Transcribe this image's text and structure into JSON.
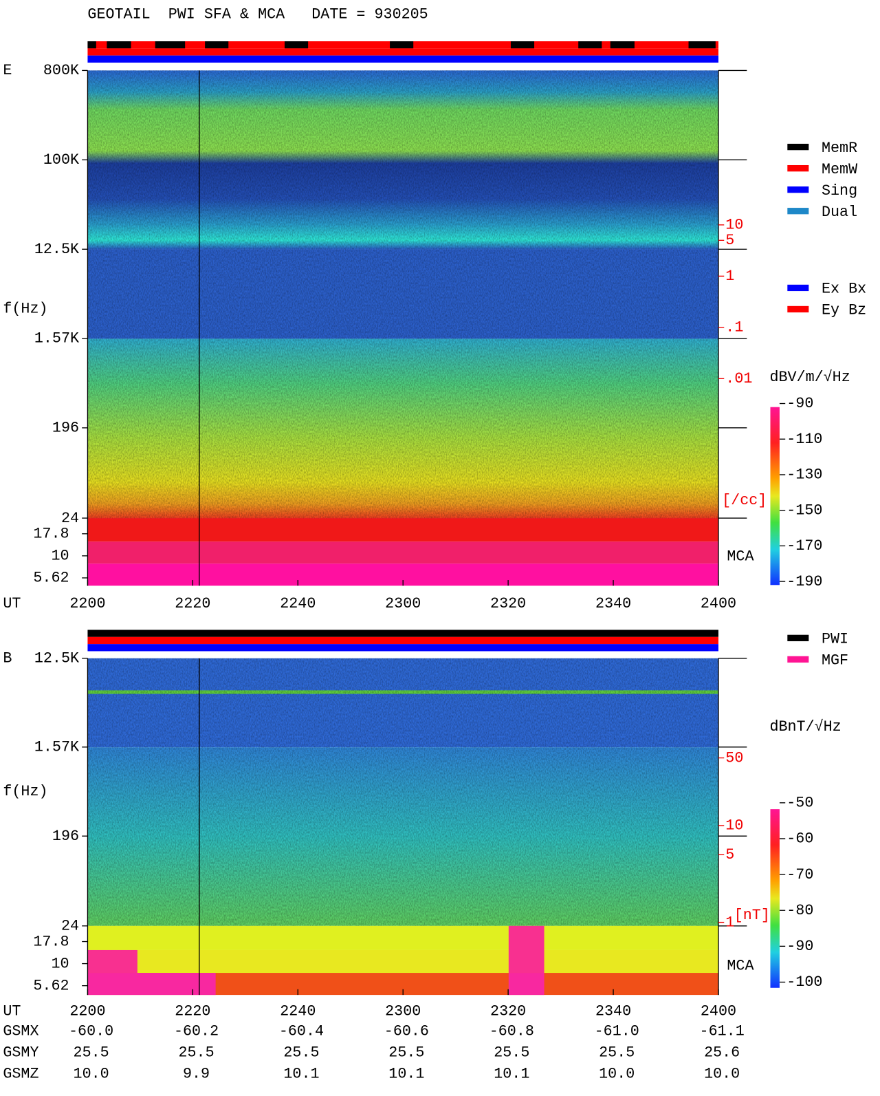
{
  "header": {
    "title": "GEOTAIL  PWI SFA & MCA   DATE = 930205"
  },
  "chart_data": [
    {
      "type": "spectrogram",
      "panel": "E",
      "ylabel": "f(Hz)",
      "xlabel": "UT",
      "log_y": true,
      "ylim": [
        24,
        800000
      ],
      "yticks": [
        {
          "value": 800000,
          "label": "800K"
        },
        {
          "value": 100000,
          "label": "100K"
        },
        {
          "value": 12500,
          "label": "12.5K"
        },
        {
          "value": 1570,
          "label": "1.57K"
        },
        196,
        24
      ],
      "mca_label": "MCA",
      "mca_channels": [
        17.8,
        10,
        5.62
      ],
      "time_labels": [
        "2200",
        "2220",
        "2240",
        "2300",
        "2320",
        "2340",
        "2400"
      ],
      "density_ticks": [
        10,
        5,
        1,
        {
          "value": 0.1,
          "label": ".1"
        },
        {
          "value": 0.01,
          "label": ".01"
        }
      ],
      "density_unit": "[/cc]",
      "colorbar": {
        "label": "dBV/m/√Hz",
        "lim": [
          -190,
          -90
        ],
        "ticks": [
          -90,
          -110,
          -130,
          -150,
          -170,
          -190
        ]
      },
      "legend": [
        {
          "name": "MemR",
          "color": "#000000"
        },
        {
          "name": "MemW",
          "color": "#ff0000"
        },
        {
          "name": "Sing",
          "color": "#0000ff"
        },
        {
          "name": "Dual",
          "color": "#1e88c8"
        }
      ],
      "legend2": [
        {
          "name": "Ex Bx",
          "color": "#0000ff"
        },
        {
          "name": "Ey Bz",
          "color": "#ff0000"
        }
      ]
    },
    {
      "type": "spectrogram",
      "panel": "B",
      "ylabel": "f(Hz)",
      "xlabel": "UT",
      "log_y": true,
      "ylim": [
        24,
        12500
      ],
      "yticks": [
        {
          "value": 12500,
          "label": "12.5K"
        },
        {
          "value": 1570,
          "label": "1.57K"
        },
        196,
        24
      ],
      "mca_label": "MCA",
      "mca_channels": [
        17.8,
        10,
        5.62
      ],
      "time_labels": [
        "2200",
        "2220",
        "2240",
        "2300",
        "2320",
        "2340",
        "2400"
      ],
      "density_ticks": [
        50,
        10,
        5,
        1
      ],
      "density_unit": "[nT]",
      "colorbar": {
        "label": "dBnT/√Hz",
        "lim": [
          -100,
          -50
        ],
        "ticks": [
          -50,
          -60,
          -70,
          -80,
          -90,
          -100
        ]
      },
      "legend": [
        {
          "name": "PWI",
          "color": "#000000"
        },
        {
          "name": "MGF",
          "color": "#ff1493"
        }
      ]
    }
  ],
  "orbit": {
    "rows": [
      {
        "label": "GSMX",
        "values": [
          "-60.0",
          "-60.2",
          "-60.4",
          "-60.6",
          "-60.8",
          "-61.0",
          "-61.1"
        ]
      },
      {
        "label": "GSMY",
        "values": [
          "25.5",
          "25.5",
          "25.5",
          "25.5",
          "25.5",
          "25.5",
          "25.6"
        ]
      },
      {
        "label": "GSMZ",
        "values": [
          "10.0",
          "9.9",
          "10.1",
          "10.1",
          "10.1",
          "10.0",
          "10.0"
        ]
      }
    ]
  }
}
